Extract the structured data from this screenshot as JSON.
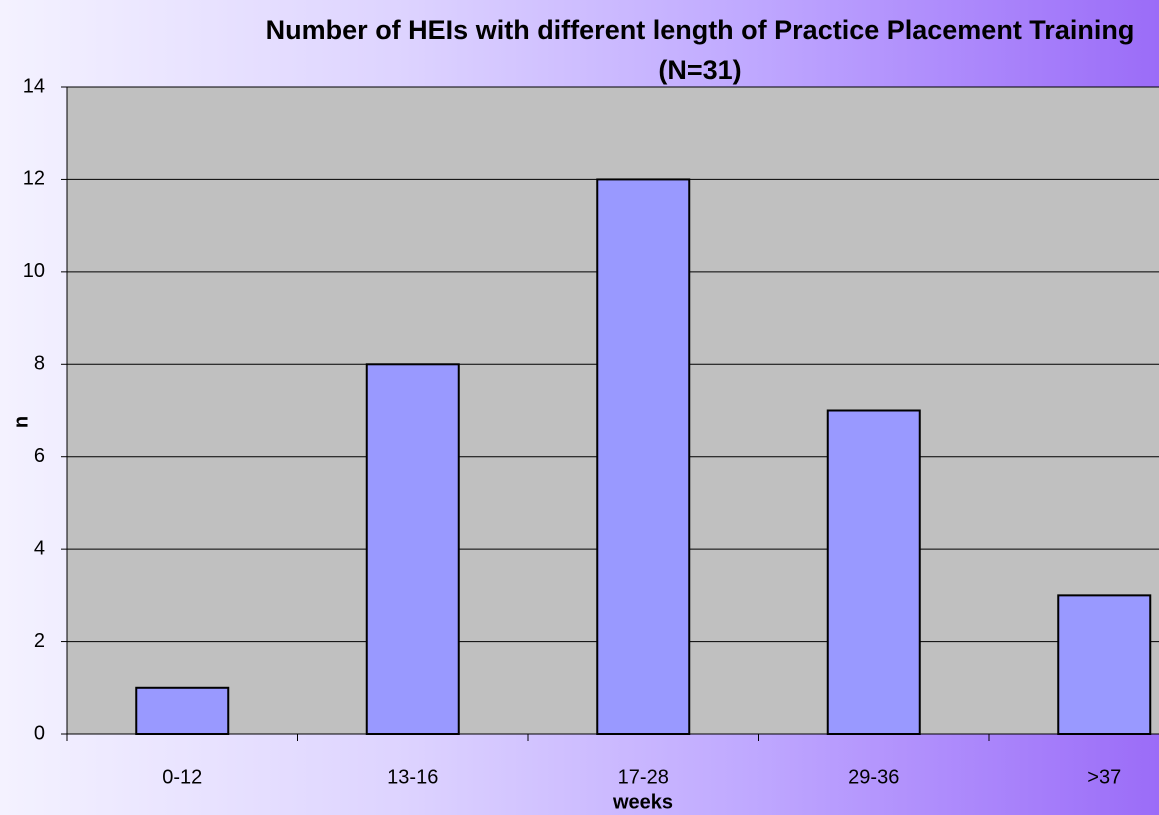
{
  "chart_data": {
    "type": "bar",
    "title": "Number of HEIs with different length of Practice Placement Training (N=31)",
    "x_label": "weeks",
    "y_label": "n",
    "categories": [
      "0-12",
      "13-16",
      "17-28",
      "29-36",
      ">37"
    ],
    "values": [
      1,
      8,
      12,
      7,
      3
    ],
    "color": "#9999ff",
    "ylim": [
      0,
      14
    ],
    "yticks": [
      0,
      2,
      4,
      6,
      8,
      10,
      12,
      14
    ],
    "grid": true
  }
}
